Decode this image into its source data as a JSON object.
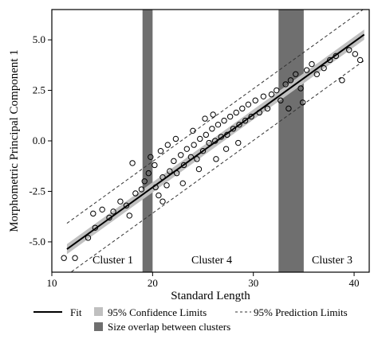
{
  "chart_data": {
    "type": "scatter",
    "title": "",
    "xlabel": "Standard Length",
    "ylabel": "Morphometric Principal Component 1",
    "xlim": [
      10,
      41.5
    ],
    "ylim": [
      -6.5,
      6.5
    ],
    "x_ticks": [
      10,
      20,
      30,
      40
    ],
    "y_ticks": [
      -5.0,
      -2.5,
      0.0,
      2.5,
      5.0
    ],
    "x_tick_labels": [
      "10",
      "20",
      "30",
      "40"
    ],
    "y_tick_labels": [
      "-5.0",
      "-2.5",
      "0.0",
      "2.5",
      "5.0"
    ],
    "grid": false,
    "fit": {
      "slope": 0.36,
      "intercept": -9.5,
      "x_range": [
        11.5,
        41
      ]
    },
    "confidence_band_halfwidth": 0.25,
    "prediction_band_halfwidth": 1.28,
    "overlap_regions": [
      [
        19,
        20
      ],
      [
        32.5,
        35
      ]
    ],
    "cluster_labels": [
      "Cluster 1",
      "Cluster 4",
      "Cluster 3"
    ],
    "legend": {
      "fit": "Fit",
      "confidence": "95% Confidence Limits",
      "prediction": "95% Prediction Limits",
      "overlap": "Size overlap between clusters"
    },
    "colors": {
      "fit_line": "#000000",
      "confidence_band": "#c0c0c0",
      "overlap_band": "#6f6f6f",
      "prediction_line": "#333333"
    },
    "points": [
      [
        11.2,
        -5.8
      ],
      [
        12.3,
        -5.8
      ],
      [
        13.6,
        -4.8
      ],
      [
        14.3,
        -4.3
      ],
      [
        14.1,
        -3.6
      ],
      [
        15.0,
        -3.4
      ],
      [
        15.7,
        -3.8
      ],
      [
        16.1,
        -3.5
      ],
      [
        16.8,
        -3.0
      ],
      [
        17.4,
        -3.2
      ],
      [
        17.7,
        -3.7
      ],
      [
        18.3,
        -2.6
      ],
      [
        18.9,
        -2.4
      ],
      [
        19.2,
        -2.0
      ],
      [
        18.0,
        -1.1
      ],
      [
        19.6,
        -1.6
      ],
      [
        20.3,
        -2.3
      ],
      [
        20.6,
        -2.7
      ],
      [
        21.0,
        -3.0
      ],
      [
        21.4,
        -2.2
      ],
      [
        20.2,
        -1.2
      ],
      [
        21.0,
        -1.8
      ],
      [
        21.7,
        -1.5
      ],
      [
        22.1,
        -1.0
      ],
      [
        22.4,
        -1.6
      ],
      [
        22.8,
        -0.7
      ],
      [
        23.1,
        -1.2
      ],
      [
        23.4,
        -0.4
      ],
      [
        23.8,
        -0.8
      ],
      [
        24.1,
        -0.2
      ],
      [
        24.4,
        -0.9
      ],
      [
        24.7,
        0.1
      ],
      [
        25.0,
        -0.5
      ],
      [
        25.3,
        0.3
      ],
      [
        25.6,
        -0.1
      ],
      [
        25.9,
        0.6
      ],
      [
        26.2,
        0.0
      ],
      [
        26.5,
        0.8
      ],
      [
        26.8,
        0.2
      ],
      [
        27.1,
        1.0
      ],
      [
        27.4,
        0.3
      ],
      [
        27.7,
        1.2
      ],
      [
        28.0,
        0.6
      ],
      [
        28.3,
        1.4
      ],
      [
        28.6,
        0.8
      ],
      [
        28.9,
        1.6
      ],
      [
        29.2,
        1.0
      ],
      [
        29.5,
        1.8
      ],
      [
        29.8,
        1.2
      ],
      [
        30.2,
        2.0
      ],
      [
        30.6,
        1.4
      ],
      [
        31.0,
        2.2
      ],
      [
        31.4,
        1.6
      ],
      [
        31.8,
        2.3
      ],
      [
        32.3,
        2.5
      ],
      [
        32.7,
        2.0
      ],
      [
        33.2,
        2.8
      ],
      [
        33.7,
        3.0
      ],
      [
        34.2,
        3.3
      ],
      [
        34.7,
        2.6
      ],
      [
        35.3,
        3.5
      ],
      [
        35.8,
        3.8
      ],
      [
        36.3,
        3.3
      ],
      [
        37.0,
        3.6
      ],
      [
        37.6,
        4.0
      ],
      [
        38.2,
        4.2
      ],
      [
        38.8,
        3.0
      ],
      [
        39.5,
        4.5
      ],
      [
        40.1,
        4.3
      ],
      [
        40.6,
        4.0
      ],
      [
        34.9,
        1.9
      ],
      [
        33.5,
        1.6
      ],
      [
        19.8,
        -0.8
      ],
      [
        20.8,
        -0.5
      ],
      [
        21.5,
        -0.2
      ],
      [
        22.3,
        0.1
      ],
      [
        23.0,
        -2.1
      ],
      [
        24.0,
        0.5
      ],
      [
        25.2,
        1.1
      ],
      [
        26.3,
        -0.9
      ],
      [
        27.3,
        -0.4
      ],
      [
        28.5,
        -0.1
      ],
      [
        26.0,
        1.3
      ],
      [
        24.6,
        -1.4
      ]
    ]
  }
}
